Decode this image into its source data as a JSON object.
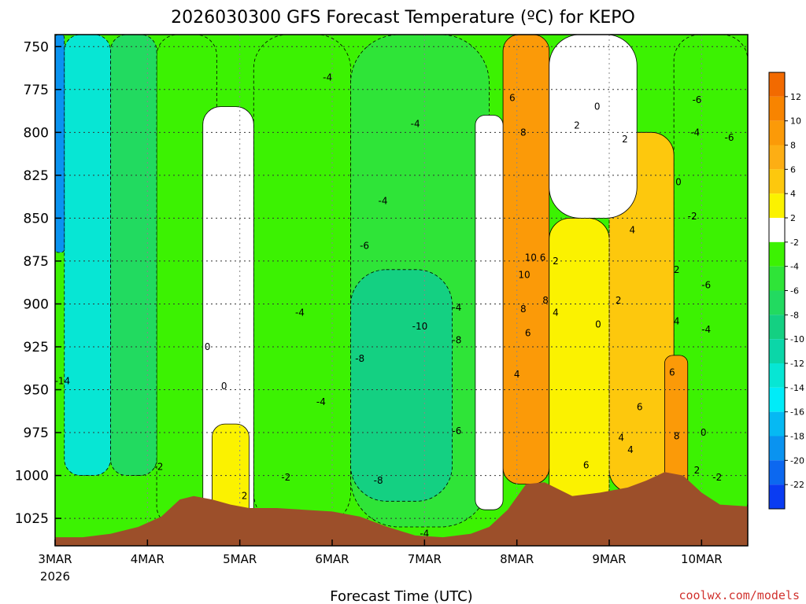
{
  "chart_data": {
    "type": "heatmap",
    "title": "2026030300 GFS Forecast Temperature (ºC) for KEPO",
    "xlabel": "Forecast Time (UTC)",
    "ylabel": "",
    "y_reversed": true,
    "ylim": [
      743,
      1041
    ],
    "xlim": [
      0,
      7.5
    ],
    "y_ticks": [
      "750",
      "775",
      "800",
      "825",
      "850",
      "875",
      "900",
      "925",
      "950",
      "975",
      "1000",
      "1025"
    ],
    "y_tick_values": [
      750,
      775,
      800,
      825,
      850,
      875,
      900,
      925,
      950,
      975,
      1000,
      1025
    ],
    "x_ticks": [
      "3MAR",
      "4MAR",
      "5MAR",
      "6MAR",
      "7MAR",
      "8MAR",
      "9MAR",
      "10MAR"
    ],
    "x_tick_values": [
      0,
      1,
      2,
      3,
      4,
      5,
      6,
      7
    ],
    "x_year": "2026",
    "grid": true,
    "colorbar": {
      "labels": [
        "12",
        "10",
        "8",
        "6",
        "4",
        "2",
        "-2",
        "-4",
        "-6",
        "-8",
        "-10",
        "-12",
        "-14",
        "-16",
        "-18",
        "-20",
        "-22"
      ],
      "colors": [
        "#f26a00",
        "#f88400",
        "#fb9a08",
        "#fdae14",
        "#fdc80d",
        "#fbf200",
        "#ffffff",
        "#3cf202",
        "#2fe438",
        "#22da60",
        "#14d082",
        "#0bd6a8",
        "#07e6d4",
        "#00ecf8",
        "#06b9f3",
        "#0a93f0",
        "#0c68f0",
        "#0a3cf2"
      ]
    },
    "fields": [
      {
        "name": "-22 to -16 core",
        "x0": 0.0,
        "x1": 0.1,
        "p0": 743,
        "p1": 870,
        "value": -20
      },
      {
        "name": "-14 to -10 column",
        "x0": 0.1,
        "x1": 0.6,
        "p0": 743,
        "p1": 1000,
        "value": -14
      },
      {
        "name": "-8 to -6 band",
        "x0": 0.6,
        "x1": 1.1,
        "p0": 743,
        "p1": 1000,
        "value": -8
      },
      {
        "name": "-4 to -2 left",
        "x0": 1.1,
        "x1": 1.75,
        "p0": 743,
        "p1": 1030,
        "value": -4
      },
      {
        "name": "0 to 2 plume",
        "x0": 1.6,
        "x1": 2.15,
        "p0": 785,
        "p1": 1030,
        "value": 0
      },
      {
        "name": "2 to 4 surface",
        "x0": 1.7,
        "x1": 2.1,
        "p0": 970,
        "p1": 1030,
        "value": 2
      },
      {
        "name": "-4 middle",
        "x0": 2.15,
        "x1": 3.2,
        "p0": 743,
        "p1": 1030,
        "value": -4
      },
      {
        "name": "-10 to -8 cold pool",
        "x0": 3.2,
        "x1": 4.3,
        "p0": 880,
        "p1": 1015,
        "value": -10
      },
      {
        "name": "-6 middle upper",
        "x0": 3.2,
        "x1": 4.7,
        "p0": 743,
        "p1": 1030,
        "value": -6
      },
      {
        "name": "0 to 2 front",
        "x0": 4.55,
        "x1": 4.85,
        "p0": 790,
        "p1": 1020,
        "value": 0
      },
      {
        "name": "6 to 10 warm core",
        "x0": 4.85,
        "x1": 5.35,
        "p0": 743,
        "p1": 1005,
        "value": 8
      },
      {
        "name": "2 to 4 warm",
        "x0": 5.35,
        "x1": 6.0,
        "p0": 850,
        "p1": 1020,
        "value": 2
      },
      {
        "name": "0 to 2 above",
        "x0": 5.35,
        "x1": 6.3,
        "p0": 743,
        "p1": 850,
        "value": 0
      },
      {
        "name": "4 to 6 warm right",
        "x0": 6.0,
        "x1": 6.7,
        "p0": 800,
        "p1": 1010,
        "value": 4
      },
      {
        "name": "6 to 8 surface right",
        "x0": 6.6,
        "x1": 6.85,
        "p0": 930,
        "p1": 1010,
        "value": 8
      },
      {
        "name": "-2 to -6 right",
        "x0": 6.7,
        "x1": 7.5,
        "p0": 743,
        "p1": 1030,
        "value": -4
      }
    ],
    "contour_labels": [
      {
        "x": 0.08,
        "p": 945,
        "text": "-14"
      },
      {
        "x": 1.12,
        "p": 995,
        "text": "-2"
      },
      {
        "x": 1.65,
        "p": 925,
        "text": "0"
      },
      {
        "x": 1.83,
        "p": 948,
        "text": "0"
      },
      {
        "x": 2.05,
        "p": 1012,
        "text": "2"
      },
      {
        "x": 2.5,
        "p": 1001,
        "text": "-2"
      },
      {
        "x": 2.65,
        "p": 905,
        "text": "-4"
      },
      {
        "x": 2.88,
        "p": 957,
        "text": "-4"
      },
      {
        "x": 2.95,
        "p": 768,
        "text": "-4"
      },
      {
        "x": 3.35,
        "p": 866,
        "text": "-6"
      },
      {
        "x": 3.3,
        "p": 932,
        "text": "-8"
      },
      {
        "x": 3.5,
        "p": 1003,
        "text": "-8"
      },
      {
        "x": 3.55,
        "p": 840,
        "text": "-4"
      },
      {
        "x": 3.9,
        "p": 795,
        "text": "-4"
      },
      {
        "x": 3.95,
        "p": 913,
        "text": "-10"
      },
      {
        "x": 4.0,
        "p": 1034,
        "text": "-4"
      },
      {
        "x": 4.35,
        "p": 902,
        "text": "-4"
      },
      {
        "x": 4.35,
        "p": 921,
        "text": "-8"
      },
      {
        "x": 4.35,
        "p": 974,
        "text": "-6"
      },
      {
        "x": 4.95,
        "p": 780,
        "text": "6"
      },
      {
        "x": 5.07,
        "p": 800,
        "text": "8"
      },
      {
        "x": 5.15,
        "p": 873,
        "text": "10"
      },
      {
        "x": 5.08,
        "p": 883,
        "text": "10"
      },
      {
        "x": 5.28,
        "p": 873,
        "text": "6"
      },
      {
        "x": 5.42,
        "p": 875,
        "text": "2"
      },
      {
        "x": 5.07,
        "p": 903,
        "text": "8"
      },
      {
        "x": 5.31,
        "p": 898,
        "text": "8"
      },
      {
        "x": 5.42,
        "p": 905,
        "text": "4"
      },
      {
        "x": 5.12,
        "p": 917,
        "text": "6"
      },
      {
        "x": 5.0,
        "p": 941,
        "text": "4"
      },
      {
        "x": 5.75,
        "p": 994,
        "text": "6"
      },
      {
        "x": 5.65,
        "p": 796,
        "text": "2"
      },
      {
        "x": 5.87,
        "p": 785,
        "text": "0"
      },
      {
        "x": 6.17,
        "p": 804,
        "text": "2"
      },
      {
        "x": 6.1,
        "p": 898,
        "text": "2"
      },
      {
        "x": 5.88,
        "p": 912,
        "text": "0"
      },
      {
        "x": 6.25,
        "p": 857,
        "text": "4"
      },
      {
        "x": 6.23,
        "p": 985,
        "text": "4"
      },
      {
        "x": 6.33,
        "p": 960,
        "text": "6"
      },
      {
        "x": 6.13,
        "p": 978,
        "text": "4"
      },
      {
        "x": 6.75,
        "p": 829,
        "text": "0"
      },
      {
        "x": 6.9,
        "p": 849,
        "text": "-2"
      },
      {
        "x": 6.93,
        "p": 800,
        "text": "-4"
      },
      {
        "x": 6.95,
        "p": 781,
        "text": "-6"
      },
      {
        "x": 7.3,
        "p": 803,
        "text": "-6"
      },
      {
        "x": 6.73,
        "p": 880,
        "text": "2"
      },
      {
        "x": 6.73,
        "p": 910,
        "text": "4"
      },
      {
        "x": 6.68,
        "p": 940,
        "text": "6"
      },
      {
        "x": 7.05,
        "p": 889,
        "text": "-6"
      },
      {
        "x": 7.05,
        "p": 915,
        "text": "-4"
      },
      {
        "x": 6.73,
        "p": 977,
        "text": "8"
      },
      {
        "x": 7.02,
        "p": 975,
        "text": "0"
      },
      {
        "x": 6.95,
        "p": 997,
        "text": "2"
      },
      {
        "x": 7.17,
        "p": 1001,
        "text": "-2"
      }
    ],
    "terrain_color": "#9c4f2a",
    "terrain": [
      [
        0,
        1036
      ],
      [
        0.3,
        1036
      ],
      [
        0.6,
        1034
      ],
      [
        0.9,
        1030
      ],
      [
        1.15,
        1024
      ],
      [
        1.35,
        1014
      ],
      [
        1.5,
        1012
      ],
      [
        1.7,
        1014
      ],
      [
        1.9,
        1017
      ],
      [
        2.1,
        1019
      ],
      [
        2.4,
        1019
      ],
      [
        2.7,
        1020
      ],
      [
        3.0,
        1021
      ],
      [
        3.3,
        1024
      ],
      [
        3.6,
        1030
      ],
      [
        3.9,
        1035
      ],
      [
        4.2,
        1036
      ],
      [
        4.5,
        1034
      ],
      [
        4.7,
        1030
      ],
      [
        4.9,
        1020
      ],
      [
        5.1,
        1005
      ],
      [
        5.3,
        1004
      ],
      [
        5.6,
        1012
      ],
      [
        5.9,
        1010
      ],
      [
        6.2,
        1007
      ],
      [
        6.4,
        1003
      ],
      [
        6.6,
        998
      ],
      [
        6.8,
        1000
      ],
      [
        7.0,
        1010
      ],
      [
        7.2,
        1017
      ],
      [
        7.5,
        1018
      ]
    ],
    "credit": "coolwx.com/models"
  }
}
